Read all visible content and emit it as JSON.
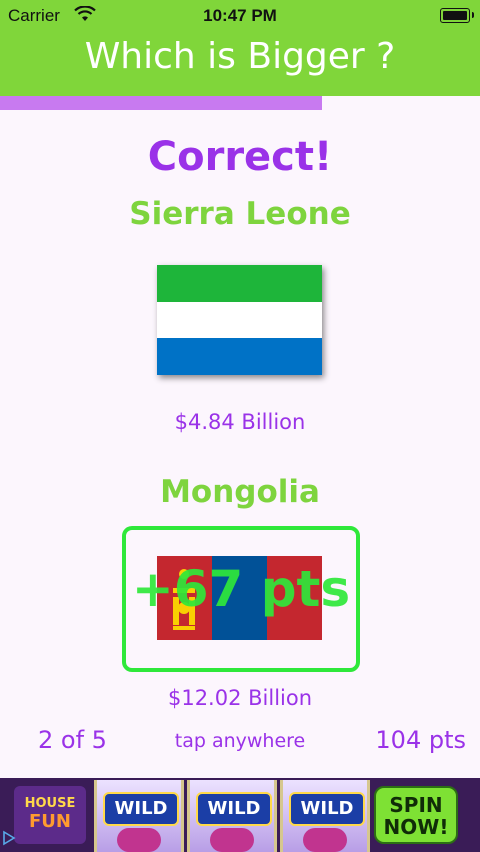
{
  "status_bar": {
    "carrier": "Carrier",
    "time": "10:47 PM"
  },
  "header": {
    "title": "Which is Bigger ?"
  },
  "progress": {
    "fraction": 0.67
  },
  "result": {
    "message": "Correct!"
  },
  "comparison": [
    {
      "country": "Sierra Leone",
      "value": "$4.84 Billion",
      "flag": "sierra-leone-flag",
      "flag_colors": [
        "#1eb53a",
        "#ffffff",
        "#0072c6"
      ]
    },
    {
      "country": "Mongolia",
      "value": "$12.02 Billion",
      "flag": "mongolia-flag",
      "flag_colors": [
        "#c4272f",
        "#015197",
        "#c4272f"
      ],
      "highlighted": true
    }
  ],
  "points_awarded": "+67 pts",
  "footer": {
    "round": "2 of 5",
    "hint": "tap anywhere",
    "score": "104 pts"
  },
  "ad": {
    "brand_line1": "HOUSE",
    "brand_line2": "FUN",
    "reel_label": "WILD",
    "cta_line1": "SPIN",
    "cta_line2": "NOW!"
  },
  "colors": {
    "header": "#80d63a",
    "accent_purple": "#9a32e8",
    "accent_green": "#7ed43e",
    "highlight": "#2fe83a",
    "progress": "#c87af0"
  }
}
